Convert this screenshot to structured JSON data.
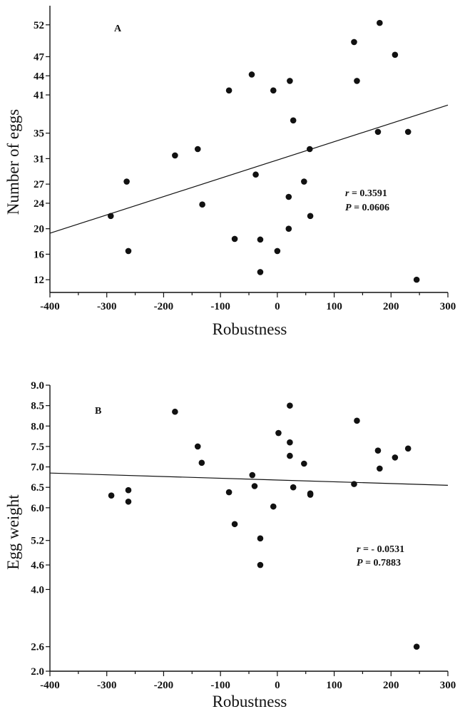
{
  "chart_data": [
    {
      "type": "scatter",
      "panel_label": "A",
      "xlabel": "Robustness",
      "ylabel": "Number of eggs",
      "xlim": [
        -400,
        300
      ],
      "ylim": [
        10,
        55
      ],
      "x_ticks": [
        -400,
        -300,
        -200,
        -100,
        0,
        100,
        200,
        300
      ],
      "y_ticks": [
        12,
        16,
        20,
        24,
        27,
        31,
        35,
        41,
        44,
        47,
        52
      ],
      "grid": false,
      "points": [
        {
          "x": -293,
          "y": 22.0
        },
        {
          "x": -265,
          "y": 27.4
        },
        {
          "x": -262,
          "y": 16.5
        },
        {
          "x": -180,
          "y": 31.5
        },
        {
          "x": -140,
          "y": 32.5
        },
        {
          "x": -132,
          "y": 23.8
        },
        {
          "x": -85,
          "y": 41.7
        },
        {
          "x": -75,
          "y": 18.4
        },
        {
          "x": -45,
          "y": 44.2
        },
        {
          "x": -38,
          "y": 28.5
        },
        {
          "x": -30,
          "y": 18.3
        },
        {
          "x": -30,
          "y": 13.2
        },
        {
          "x": -7,
          "y": 41.7
        },
        {
          "x": 0,
          "y": 16.5
        },
        {
          "x": 20,
          "y": 25.0
        },
        {
          "x": 20,
          "y": 20.0
        },
        {
          "x": 22,
          "y": 43.2
        },
        {
          "x": 28,
          "y": 37.0
        },
        {
          "x": 47,
          "y": 27.4
        },
        {
          "x": 57,
          "y": 32.5
        },
        {
          "x": 58,
          "y": 22.0
        },
        {
          "x": 135,
          "y": 49.3
        },
        {
          "x": 140,
          "y": 43.2
        },
        {
          "x": 177,
          "y": 35.2
        },
        {
          "x": 180,
          "y": 52.3
        },
        {
          "x": 207,
          "y": 47.3
        },
        {
          "x": 230,
          "y": 35.2
        },
        {
          "x": 245,
          "y": 12.0
        }
      ],
      "fit_line": [
        {
          "x": -400,
          "y": 19.3
        },
        {
          "x": 300,
          "y": 39.4
        }
      ],
      "annotations": {
        "r_label": "r",
        "r_value": " = 0.3591",
        "p_label": "P",
        "p_value": " = 0.0606"
      }
    },
    {
      "type": "scatter",
      "panel_label": "B",
      "xlabel": "Robustness",
      "ylabel": "Egg weight",
      "xlim": [
        -400,
        300
      ],
      "ylim": [
        2.0,
        9.0
      ],
      "x_ticks": [
        -400,
        -300,
        -200,
        -100,
        0,
        100,
        200,
        300
      ],
      "y_ticks": [
        2.0,
        2.6,
        4.0,
        4.6,
        5.2,
        6.0,
        6.5,
        7.0,
        7.5,
        8.0,
        8.5,
        9.0
      ],
      "y_tick_labels": [
        "2.0",
        "2.6",
        "4.0",
        "4.6",
        "5.2",
        "6.0",
        "6.5",
        "7.0",
        "7.5",
        "8.0",
        "8.5",
        "9.0"
      ],
      "grid": false,
      "points": [
        {
          "x": -292,
          "y": 6.3
        },
        {
          "x": -262,
          "y": 6.43
        },
        {
          "x": -262,
          "y": 6.15
        },
        {
          "x": -180,
          "y": 8.35
        },
        {
          "x": -140,
          "y": 7.5
        },
        {
          "x": -133,
          "y": 7.1
        },
        {
          "x": -85,
          "y": 6.38
        },
        {
          "x": -75,
          "y": 5.6
        },
        {
          "x": -44,
          "y": 6.8
        },
        {
          "x": -40,
          "y": 6.53
        },
        {
          "x": -30,
          "y": 5.25
        },
        {
          "x": -30,
          "y": 4.6
        },
        {
          "x": -7,
          "y": 6.03
        },
        {
          "x": 2,
          "y": 7.83
        },
        {
          "x": 22,
          "y": 8.5
        },
        {
          "x": 22,
          "y": 7.6
        },
        {
          "x": 22,
          "y": 7.27
        },
        {
          "x": 28,
          "y": 6.5
        },
        {
          "x": 47,
          "y": 7.08
        },
        {
          "x": 58,
          "y": 6.35
        },
        {
          "x": 58,
          "y": 6.32
        },
        {
          "x": 135,
          "y": 6.58
        },
        {
          "x": 140,
          "y": 8.13
        },
        {
          "x": 177,
          "y": 7.4
        },
        {
          "x": 180,
          "y": 6.96
        },
        {
          "x": 207,
          "y": 7.23
        },
        {
          "x": 230,
          "y": 7.45
        },
        {
          "x": 245,
          "y": 2.6
        }
      ],
      "fit_line": [
        {
          "x": -400,
          "y": 6.85
        },
        {
          "x": 300,
          "y": 6.55
        }
      ],
      "annotations": {
        "r_label": "r",
        "r_value": " = - 0.0531",
        "p_label": "P",
        "p_value": " = 0.7883"
      }
    }
  ]
}
